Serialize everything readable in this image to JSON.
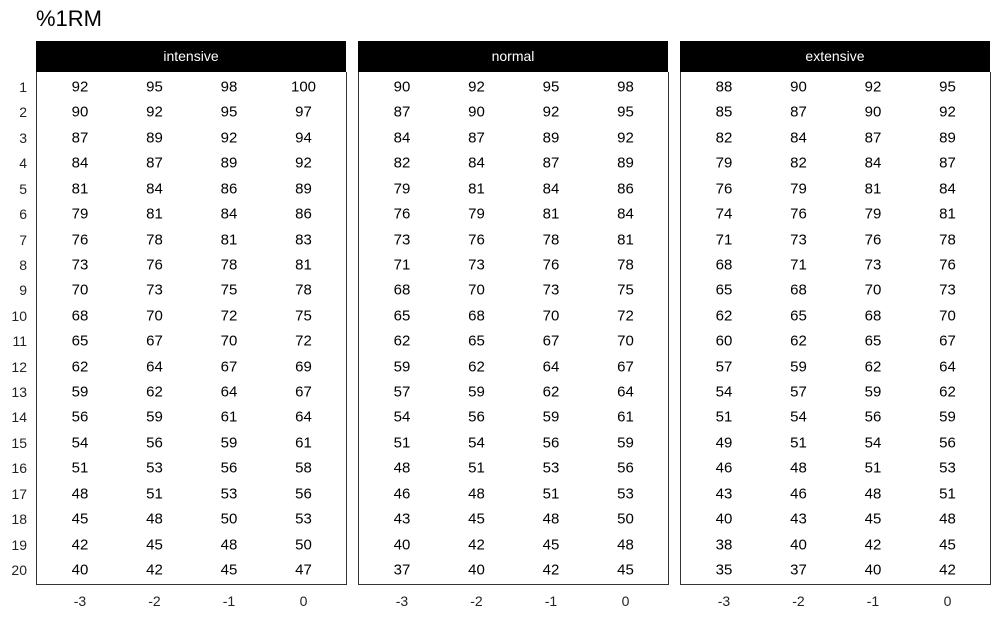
{
  "chart_data": {
    "type": "table",
    "title": "%1RM",
    "x_tick_labels": [
      "-3",
      "-2",
      "-1",
      "0"
    ],
    "y_tick_labels": [
      "1",
      "2",
      "3",
      "4",
      "5",
      "6",
      "7",
      "8",
      "9",
      "10",
      "11",
      "12",
      "13",
      "14",
      "15",
      "16",
      "17",
      "18",
      "19",
      "20"
    ],
    "panels": [
      {
        "label": "intensive",
        "values": [
          [
            "92",
            "95",
            "98",
            "100"
          ],
          [
            "90",
            "92",
            "95",
            "97"
          ],
          [
            "87",
            "89",
            "92",
            "94"
          ],
          [
            "84",
            "87",
            "89",
            "92"
          ],
          [
            "81",
            "84",
            "86",
            "89"
          ],
          [
            "79",
            "81",
            "84",
            "86"
          ],
          [
            "76",
            "78",
            "81",
            "83"
          ],
          [
            "73",
            "76",
            "78",
            "81"
          ],
          [
            "70",
            "73",
            "75",
            "78"
          ],
          [
            "68",
            "70",
            "72",
            "75"
          ],
          [
            "65",
            "67",
            "70",
            "72"
          ],
          [
            "62",
            "64",
            "67",
            "69"
          ],
          [
            "59",
            "62",
            "64",
            "67"
          ],
          [
            "56",
            "59",
            "61",
            "64"
          ],
          [
            "54",
            "56",
            "59",
            "61"
          ],
          [
            "51",
            "53",
            "56",
            "58"
          ],
          [
            "48",
            "51",
            "53",
            "56"
          ],
          [
            "45",
            "48",
            "50",
            "53"
          ],
          [
            "42",
            "45",
            "48",
            "50"
          ],
          [
            "40",
            "42",
            "45",
            "47"
          ]
        ]
      },
      {
        "label": "normal",
        "values": [
          [
            "90",
            "92",
            "95",
            "98"
          ],
          [
            "87",
            "90",
            "92",
            "95"
          ],
          [
            "84",
            "87",
            "89",
            "92"
          ],
          [
            "82",
            "84",
            "87",
            "89"
          ],
          [
            "79",
            "81",
            "84",
            "86"
          ],
          [
            "76",
            "79",
            "81",
            "84"
          ],
          [
            "73",
            "76",
            "78",
            "81"
          ],
          [
            "71",
            "73",
            "76",
            "78"
          ],
          [
            "68",
            "70",
            "73",
            "75"
          ],
          [
            "65",
            "68",
            "70",
            "72"
          ],
          [
            "62",
            "65",
            "67",
            "70"
          ],
          [
            "59",
            "62",
            "64",
            "67"
          ],
          [
            "57",
            "59",
            "62",
            "64"
          ],
          [
            "54",
            "56",
            "59",
            "61"
          ],
          [
            "51",
            "54",
            "56",
            "59"
          ],
          [
            "48",
            "51",
            "53",
            "56"
          ],
          [
            "46",
            "48",
            "51",
            "53"
          ],
          [
            "43",
            "45",
            "48",
            "50"
          ],
          [
            "40",
            "42",
            "45",
            "48"
          ],
          [
            "37",
            "40",
            "42",
            "45"
          ]
        ]
      },
      {
        "label": "extensive",
        "values": [
          [
            "88",
            "90",
            "92",
            "95"
          ],
          [
            "85",
            "87",
            "90",
            "92"
          ],
          [
            "82",
            "84",
            "87",
            "89"
          ],
          [
            "79",
            "82",
            "84",
            "87"
          ],
          [
            "76",
            "79",
            "81",
            "84"
          ],
          [
            "74",
            "76",
            "79",
            "81"
          ],
          [
            "71",
            "73",
            "76",
            "78"
          ],
          [
            "68",
            "71",
            "73",
            "76"
          ],
          [
            "65",
            "68",
            "70",
            "73"
          ],
          [
            "62",
            "65",
            "68",
            "70"
          ],
          [
            "60",
            "62",
            "65",
            "67"
          ],
          [
            "57",
            "59",
            "62",
            "64"
          ],
          [
            "54",
            "57",
            "59",
            "62"
          ],
          [
            "51",
            "54",
            "56",
            "59"
          ],
          [
            "49",
            "51",
            "54",
            "56"
          ],
          [
            "46",
            "48",
            "51",
            "53"
          ],
          [
            "43",
            "46",
            "48",
            "51"
          ],
          [
            "40",
            "43",
            "45",
            "48"
          ],
          [
            "38",
            "40",
            "42",
            "45"
          ],
          [
            "35",
            "37",
            "40",
            "42"
          ]
        ]
      }
    ],
    "colors": {
      "strip_background": "#000000",
      "strip_text": "#ffffff",
      "panel_border": "#333333"
    }
  }
}
